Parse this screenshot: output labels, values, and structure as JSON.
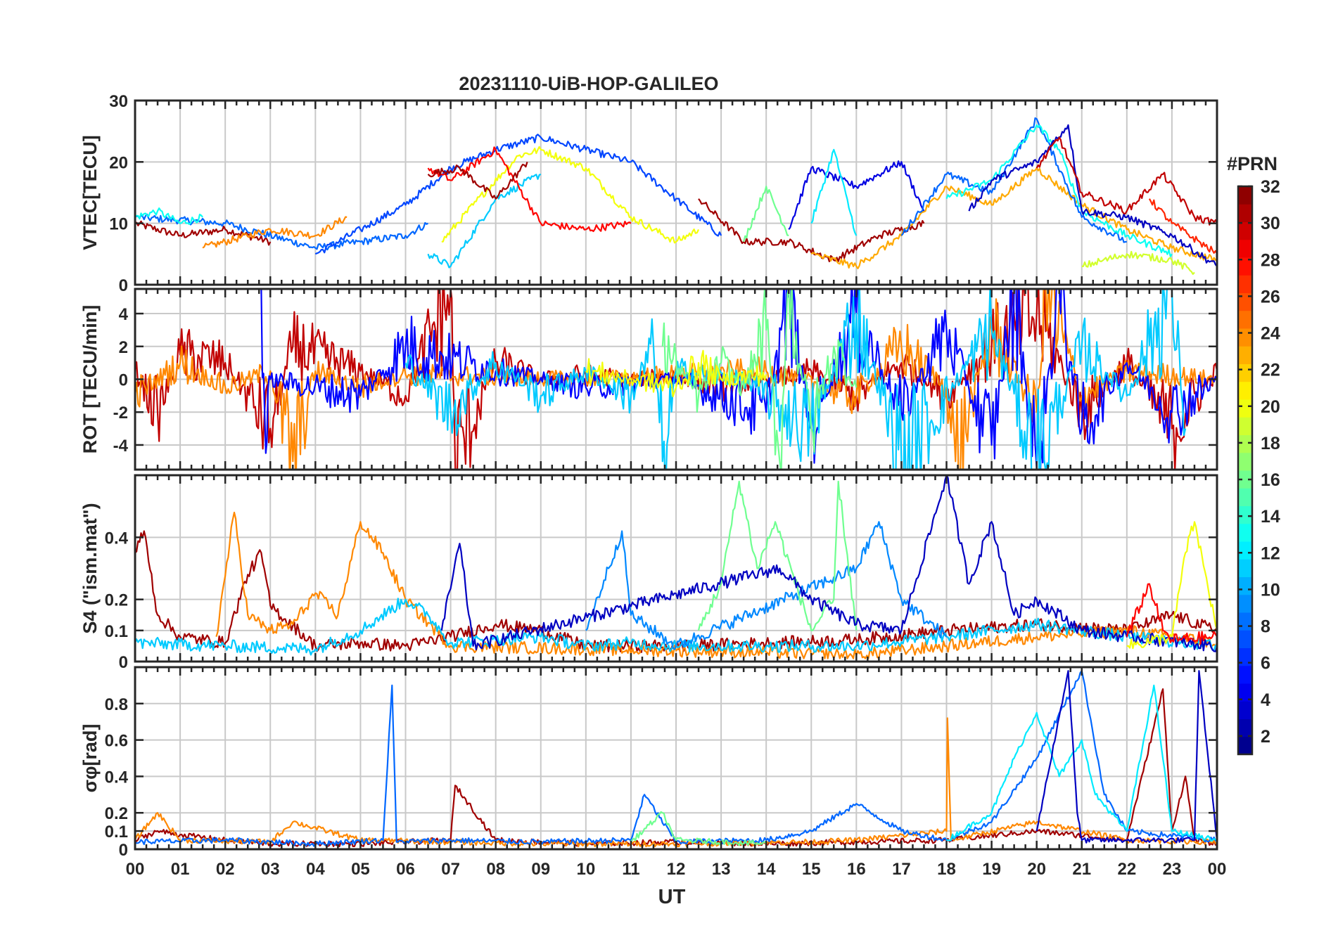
{
  "figure": {
    "title": "20231110-UiB-HOP-GALILEO",
    "xlabel": "UT",
    "colorbar_title": "#PRN"
  },
  "chart_data": [
    {
      "type": "line",
      "ylabel": "VTEC[TECU]",
      "ylim": [
        0,
        30
      ],
      "yticks": [
        0,
        10,
        20,
        30
      ],
      "xlim": [
        0,
        24
      ],
      "xticks": [
        "00",
        "01",
        "02",
        "03",
        "04",
        "05",
        "06",
        "07",
        "08",
        "09",
        "10",
        "11",
        "12",
        "13",
        "14",
        "15",
        "16",
        "17",
        "18",
        "19",
        "20",
        "21",
        "22",
        "23",
        "00"
      ],
      "grid": true,
      "series": [
        {
          "prn": 31,
          "x": [
            0,
            1,
            2,
            3
          ],
          "y": [
            10,
            8,
            9,
            7
          ]
        },
        {
          "prn": 8,
          "x": [
            0,
            2,
            4,
            5,
            6,
            6.5
          ],
          "y": [
            11,
            10,
            6,
            7,
            8,
            10
          ]
        },
        {
          "prn": 13,
          "x": [
            0,
            0.5,
            1,
            1.5
          ],
          "y": [
            11,
            12,
            10,
            11
          ]
        },
        {
          "prn": 24,
          "x": [
            1.5,
            3,
            4,
            4.7
          ],
          "y": [
            6,
            9,
            8,
            11
          ]
        },
        {
          "prn": 7,
          "x": [
            4,
            5,
            6,
            7,
            8,
            9,
            10,
            11,
            12,
            13
          ],
          "y": [
            5,
            9,
            13,
            19,
            22,
            24,
            22,
            20,
            14,
            8
          ]
        },
        {
          "prn": 20,
          "x": [
            6.8,
            7.5,
            8.5,
            9,
            10,
            11,
            12,
            12.5
          ],
          "y": [
            7,
            13,
            21,
            22,
            19,
            11,
            7,
            9
          ]
        },
        {
          "prn": 11,
          "x": [
            6.5,
            7,
            8,
            9
          ],
          "y": [
            5,
            3,
            14,
            18
          ]
        },
        {
          "prn": 28,
          "x": [
            6.5,
            7,
            8,
            9,
            10,
            11
          ],
          "y": [
            19,
            17,
            22,
            10,
            9,
            10
          ]
        },
        {
          "prn": 31,
          "x": [
            6.5,
            7.2,
            8,
            8.7
          ],
          "y": [
            18,
            19,
            14,
            20
          ]
        },
        {
          "prn": 31,
          "x": [
            12.5,
            13.5,
            14.5,
            15.5,
            16.5,
            17.5
          ],
          "y": [
            14,
            7,
            7,
            4,
            8,
            10
          ]
        },
        {
          "prn": 16,
          "x": [
            13.5,
            14,
            14.5
          ],
          "y": [
            7,
            16,
            8
          ]
        },
        {
          "prn": 4,
          "x": [
            14.5,
            15,
            16,
            17,
            17.5
          ],
          "y": [
            9,
            19,
            16,
            20,
            12
          ]
        },
        {
          "prn": 12,
          "x": [
            15,
            15.5,
            16
          ],
          "y": [
            10,
            22,
            8
          ]
        },
        {
          "prn": 23,
          "x": [
            15,
            16,
            17,
            18,
            19,
            20,
            21,
            22,
            23,
            24
          ],
          "y": [
            5,
            3,
            8,
            16,
            13,
            19,
            13,
            9,
            6,
            4
          ]
        },
        {
          "prn": 8,
          "x": [
            17,
            18,
            19,
            20,
            21,
            22
          ],
          "y": [
            8,
            18,
            15,
            27,
            11,
            7
          ]
        },
        {
          "prn": 13,
          "x": [
            18,
            19,
            20,
            20.5,
            21,
            22,
            23
          ],
          "y": [
            14,
            17,
            26,
            22,
            12,
            8,
            5
          ]
        },
        {
          "prn": 3,
          "x": [
            18.5,
            19,
            20,
            20.7,
            21,
            22,
            23,
            24
          ],
          "y": [
            12,
            17,
            20,
            26,
            12,
            11,
            8,
            3
          ]
        },
        {
          "prn": 30,
          "x": [
            20,
            20.5,
            21,
            22,
            22.8,
            23.5,
            24
          ],
          "y": [
            19,
            24,
            15,
            12,
            18,
            11,
            10
          ]
        },
        {
          "prn": 19,
          "x": [
            21,
            22,
            23,
            23.5
          ],
          "y": [
            3,
            5,
            4,
            2
          ]
        },
        {
          "prn": 27,
          "x": [
            22.5,
            23,
            24
          ],
          "y": [
            14,
            10,
            5
          ]
        }
      ]
    },
    {
      "type": "line",
      "ylabel": "ROT [TECU/min]",
      "ylim": [
        -5.5,
        5.5
      ],
      "yticks": [
        -4,
        -2,
        0,
        2,
        4
      ],
      "xlim": [
        0,
        24
      ],
      "grid": true,
      "series": [
        {
          "prn": 30,
          "x": [
            0,
            0.5,
            1,
            2,
            3,
            3.5,
            5,
            6,
            7,
            7.1,
            8,
            9,
            10,
            11,
            12,
            13,
            14,
            15,
            16,
            17,
            18,
            19,
            20,
            21,
            22,
            23,
            24
          ],
          "y": [
            0.5,
            -2,
            1.5,
            1,
            -3,
            2,
            0.5,
            -1,
            5.5,
            -5,
            1,
            0,
            0.3,
            0,
            0.2,
            -0.5,
            0,
            0.5,
            -1,
            1,
            -1,
            2,
            4,
            -2,
            1,
            -3,
            0.5
          ]
        },
        {
          "prn": 24,
          "x": [
            0,
            1,
            2,
            3,
            3.5,
            4,
            5,
            6,
            10,
            14,
            16,
            17,
            18,
            18.2,
            19,
            20,
            20.2,
            21,
            22,
            24
          ],
          "y": [
            -1,
            1,
            -0.5,
            0.5,
            -5,
            0.5,
            -0.5,
            0.3,
            0,
            0.5,
            -1,
            2,
            -0.5,
            -5,
            3,
            -2,
            5.5,
            -1,
            0.5,
            0
          ]
        },
        {
          "prn": 5,
          "x": [
            2.8,
            2.9,
            3,
            5,
            6,
            8,
            10,
            12,
            14,
            14.5,
            15,
            16,
            17,
            18,
            19,
            19.5,
            20,
            20.5,
            21,
            22,
            23,
            24
          ],
          "y": [
            5.5,
            -4.5,
            0,
            -1,
            2,
            0.5,
            -0.5,
            0,
            -2,
            5,
            -3,
            4,
            -2,
            3,
            -4,
            5.5,
            -5.5,
            5.5,
            -3,
            1,
            -2,
            0
          ]
        },
        {
          "prn": 11,
          "x": [
            6,
            7,
            8,
            9,
            10,
            11,
            11.5,
            11.7,
            12,
            13.5,
            15,
            16,
            17,
            19,
            20,
            21,
            22,
            23,
            23.3
          ],
          "y": [
            1,
            -2,
            1,
            -1,
            0.5,
            -1,
            2,
            -5,
            0.5,
            0,
            -3,
            4,
            -5,
            3,
            -5,
            2,
            -1,
            5.5,
            -3
          ]
        },
        {
          "prn": 16,
          "x": [
            11.7,
            12.5,
            13,
            13.5,
            14,
            14.3,
            14.5,
            15,
            15.5,
            16
          ],
          "y": [
            2,
            -1,
            1,
            -0.5,
            3,
            -5,
            5.5,
            -3,
            2,
            -0.5
          ]
        },
        {
          "prn": 20,
          "x": [
            10,
            11,
            12,
            12.5,
            13,
            14
          ],
          "y": [
            0.5,
            0,
            -0.5,
            1,
            0,
            0.3
          ]
        }
      ]
    },
    {
      "type": "line",
      "ylabel": "S4 (\"ism.mat\")",
      "ylim": [
        0,
        0.6
      ],
      "yticks": [
        0,
        0.1,
        0.2,
        0.4
      ],
      "xlim": [
        0,
        24
      ],
      "grid": true,
      "series": [
        {
          "prn": 31,
          "x": [
            0,
            0.2,
            0.5,
            1,
            2,
            2.5,
            2.8,
            3,
            4,
            5,
            6,
            7,
            8,
            9,
            10,
            12,
            14,
            16,
            18,
            20,
            22,
            23,
            24
          ],
          "y": [
            0.35,
            0.42,
            0.15,
            0.08,
            0.06,
            0.28,
            0.35,
            0.18,
            0.05,
            0.06,
            0.05,
            0.08,
            0.12,
            0.1,
            0.05,
            0.05,
            0.06,
            0.07,
            0.1,
            0.12,
            0.1,
            0.15,
            0.1
          ]
        },
        {
          "prn": 24,
          "x": [
            1.8,
            2.2,
            2.5,
            3,
            3.5,
            4,
            4.5,
            5,
            5.5,
            6,
            7,
            10,
            14,
            16,
            18,
            20,
            22,
            24
          ],
          "y": [
            0.08,
            0.48,
            0.15,
            0.1,
            0.12,
            0.22,
            0.15,
            0.45,
            0.35,
            0.2,
            0.05,
            0.04,
            0.03,
            0.02,
            0.05,
            0.08,
            0.1,
            0.06
          ]
        },
        {
          "prn": 11,
          "x": [
            0,
            2,
            4,
            5,
            6,
            6.5,
            7,
            8,
            9,
            10,
            11,
            12,
            14,
            16,
            18,
            20,
            22,
            24
          ],
          "y": [
            0.06,
            0.05,
            0.04,
            0.1,
            0.2,
            0.15,
            0.06,
            0.07,
            0.08,
            0.05,
            0.06,
            0.05,
            0.05,
            0.05,
            0.08,
            0.12,
            0.08,
            0.05
          ]
        },
        {
          "prn": 9,
          "x": [
            10,
            10.5,
            10.8,
            11,
            12,
            16,
            16.5,
            17,
            18
          ],
          "y": [
            0.1,
            0.3,
            0.42,
            0.15,
            0.05,
            0.3,
            0.45,
            0.2,
            0.08
          ]
        },
        {
          "prn": 16,
          "x": [
            12.5,
            13,
            13.4,
            13.8,
            14.2,
            15,
            15.5,
            15.6,
            16
          ],
          "y": [
            0.1,
            0.25,
            0.58,
            0.3,
            0.45,
            0.1,
            0.2,
            0.58,
            0.1
          ]
        },
        {
          "prn": 3,
          "x": [
            6.8,
            7.2,
            7.5,
            14.3,
            15,
            16,
            17,
            18,
            18.5,
            19,
            19.5,
            20,
            21,
            22,
            24
          ],
          "y": [
            0.1,
            0.38,
            0.05,
            0.3,
            0.2,
            0.12,
            0.1,
            0.6,
            0.25,
            0.45,
            0.15,
            0.2,
            0.1,
            0.08,
            0.05
          ]
        },
        {
          "prn": 20,
          "x": [
            22,
            23,
            23.3,
            23.5,
            24
          ],
          "y": [
            0.05,
            0.08,
            0.35,
            0.45,
            0.1
          ]
        },
        {
          "prn": 28,
          "x": [
            22,
            22.5,
            22.8,
            23,
            24
          ],
          "y": [
            0.08,
            0.25,
            0.1,
            0.07,
            0.08
          ]
        }
      ]
    },
    {
      "type": "line",
      "ylabel": "σφ[rad]",
      "ylim": [
        0,
        1
      ],
      "yticks": [
        0,
        0.1,
        0.2,
        0.4,
        0.6,
        0.8
      ],
      "xlim": [
        0,
        24
      ],
      "grid": true,
      "series": [
        {
          "prn": 31,
          "x": [
            0,
            0.5,
            1,
            2,
            3,
            5,
            7,
            7.1,
            8,
            10,
            12,
            14,
            16,
            18,
            20,
            22,
            22.8,
            23,
            23.3,
            23.5,
            24
          ],
          "y": [
            0.05,
            0.1,
            0.08,
            0.05,
            0.03,
            0.03,
            0.05,
            0.35,
            0.05,
            0.03,
            0.04,
            0.03,
            0.04,
            0.05,
            0.1,
            0.05,
            0.88,
            0.1,
            0.4,
            0.05,
            0.03
          ]
        },
        {
          "prn": 24,
          "x": [
            0,
            0.5,
            1,
            3,
            3.5,
            5,
            7,
            9,
            12,
            15,
            16,
            18,
            18.02,
            18.1,
            20,
            22,
            24
          ],
          "y": [
            0.05,
            0.2,
            0.05,
            0.04,
            0.15,
            0.05,
            0.04,
            0.03,
            0.03,
            0.04,
            0.05,
            0.1,
            0.72,
            0.05,
            0.15,
            0.05,
            0.04
          ]
        },
        {
          "prn": 8,
          "x": [
            0,
            2,
            4,
            5.5,
            5.7,
            5.8,
            7,
            9,
            11,
            11.3,
            12,
            14,
            15,
            16,
            17,
            18,
            19,
            20,
            21,
            21.5,
            22,
            24
          ],
          "y": [
            0.04,
            0.05,
            0.03,
            0.05,
            0.9,
            0.04,
            0.05,
            0.04,
            0.05,
            0.3,
            0.04,
            0.05,
            0.1,
            0.25,
            0.1,
            0.05,
            0.15,
            0.5,
            0.98,
            0.3,
            0.1,
            0.05
          ]
        },
        {
          "prn": 12,
          "x": [
            18,
            19,
            19.5,
            20,
            20.5,
            21,
            21.3,
            22,
            22.6,
            23,
            24
          ],
          "y": [
            0.05,
            0.2,
            0.5,
            0.75,
            0.4,
            0.6,
            0.3,
            0.1,
            0.9,
            0.1,
            0.05
          ]
        },
        {
          "prn": 16,
          "x": [
            11,
            11.7,
            12,
            13,
            14
          ],
          "y": [
            0.04,
            0.2,
            0.05,
            0.04,
            0.03
          ]
        },
        {
          "prn": 3,
          "x": [
            20,
            20.7,
            20.9,
            21,
            23.5,
            23.6,
            24
          ],
          "y": [
            0.1,
            0.98,
            0.2,
            0.05,
            0.05,
            0.98,
            0.05
          ]
        }
      ]
    }
  ],
  "colorbar": {
    "ticks": [
      2,
      4,
      6,
      8,
      10,
      12,
      14,
      16,
      18,
      20,
      22,
      24,
      26,
      28,
      30,
      32
    ],
    "range": [
      1,
      32
    ]
  }
}
